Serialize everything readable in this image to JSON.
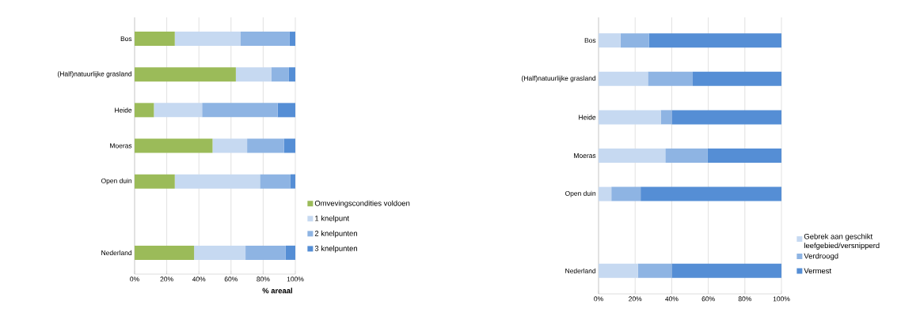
{
  "chart_data": [
    {
      "type": "bar",
      "orientation": "horizontal",
      "stacked": true,
      "xlabel": "% areaal",
      "grid": "x",
      "legend": "right",
      "categories": [
        "Bos",
        "(Half)natuurlijke grasland",
        "Heide",
        "Moeras",
        "Open duin",
        null,
        "Nederland"
      ],
      "xlim": [
        0,
        100
      ],
      "xticks": [
        {
          "value": 0,
          "label": "0%"
        },
        {
          "value": 20,
          "label": "20%"
        },
        {
          "value": 40,
          "label": "40%"
        },
        {
          "value": 60,
          "label": "60%"
        },
        {
          "value": 80,
          "label": "80%"
        },
        {
          "value": 100,
          "label": "100%"
        }
      ],
      "series": [
        {
          "name": "Omvevingscondities voldoen",
          "color": "#9bbb59",
          "values": [
            25,
            63,
            12,
            48.5,
            25,
            null,
            37
          ]
        },
        {
          "name": "1 knelpunt",
          "color": "#c6d9f1",
          "values": [
            41,
            22,
            30,
            21.5,
            53,
            null,
            32
          ]
        },
        {
          "name": "2 knelpunten",
          "color": "#8eb4e3",
          "values": [
            30.5,
            11,
            47,
            23,
            19,
            null,
            25
          ]
        },
        {
          "name": "3 knelpunten",
          "color": "#558ed5",
          "values": [
            3.5,
            4,
            11,
            7,
            3,
            null,
            6
          ]
        }
      ]
    },
    {
      "type": "bar",
      "orientation": "horizontal",
      "stacked": true,
      "grid": "x",
      "legend": "right",
      "categories": [
        "Bos",
        "(Half)natuurlijke grasland",
        "Heide",
        "Moeras",
        "Open duin",
        null,
        "Nederland"
      ],
      "xlim": [
        0,
        100
      ],
      "xticks": [
        {
          "value": 0,
          "label": "0%"
        },
        {
          "value": 20,
          "label": "20%"
        },
        {
          "value": 40,
          "label": "40%"
        },
        {
          "value": 60,
          "label": "60%"
        },
        {
          "value": 80,
          "label": "80%"
        },
        {
          "value": 100,
          "label": "100%"
        }
      ],
      "series": [
        {
          "name": "Gebrek aan geschikt leefgebied/versnipperd",
          "color": "#c6d9f1",
          "values": [
            12,
            27,
            34,
            36.5,
            7,
            null,
            21.5
          ]
        },
        {
          "name": "Verdroogd",
          "color": "#8eb4e3",
          "values": [
            15.5,
            24.5,
            6,
            23,
            16,
            null,
            18.5
          ]
        },
        {
          "name": "Vermest",
          "color": "#558ed5",
          "values": [
            72.5,
            48.5,
            60,
            40.5,
            77,
            null,
            60
          ]
        }
      ]
    }
  ]
}
